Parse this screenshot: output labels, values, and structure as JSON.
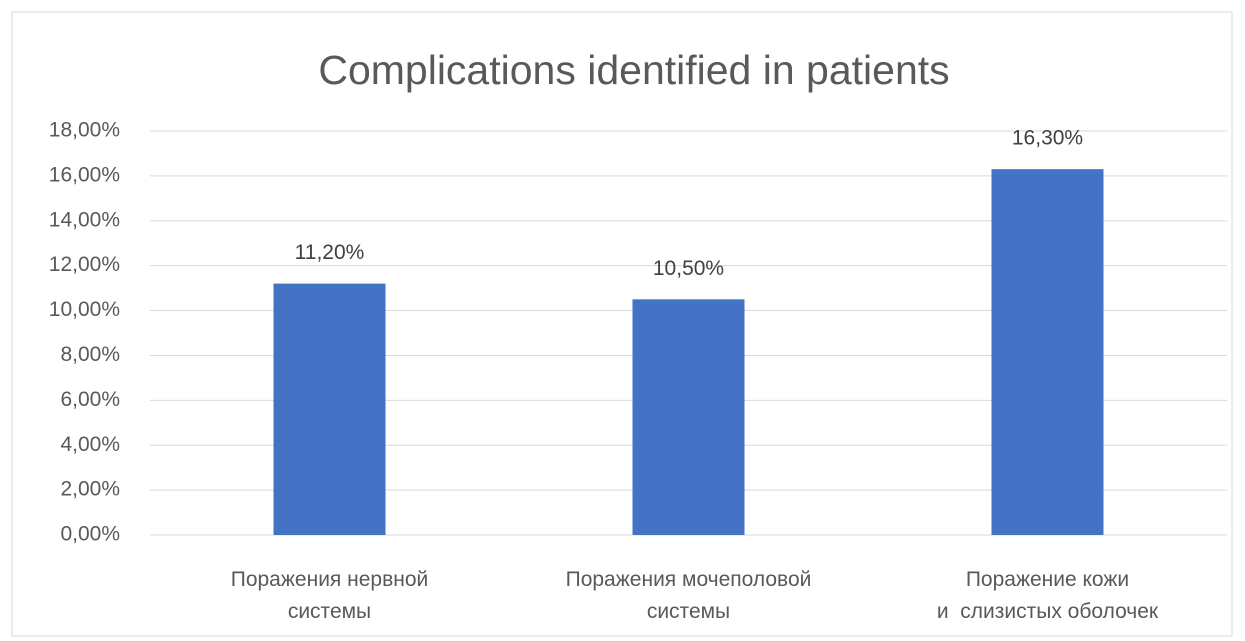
{
  "chart_data": {
    "type": "bar",
    "title": "Complications identified in patients",
    "categories": [
      [
        "Поражения нервной",
        "системы"
      ],
      [
        "Поражения мочеполовой",
        "системы"
      ],
      [
        "Поражение кожи",
        "и  слизистых оболочек"
      ]
    ],
    "values": [
      11.2,
      10.5,
      16.3
    ],
    "value_labels": [
      "11,20%",
      "10,50%",
      "16,30%"
    ],
    "color": "#4472c4",
    "ylim": [
      0,
      18
    ],
    "yticks": [
      {
        "value": 0,
        "label": "0,00%"
      },
      {
        "value": 2,
        "label": "2,00%"
      },
      {
        "value": 4,
        "label": "4,00%"
      },
      {
        "value": 6,
        "label": "6,00%"
      },
      {
        "value": 8,
        "label": "8,00%"
      },
      {
        "value": 10,
        "label": "10,00%"
      },
      {
        "value": 12,
        "label": "12,00%"
      },
      {
        "value": 14,
        "label": "14,00%"
      },
      {
        "value": 16,
        "label": "16,00%"
      },
      {
        "value": 18,
        "label": "18,00%"
      }
    ],
    "grid": true
  }
}
